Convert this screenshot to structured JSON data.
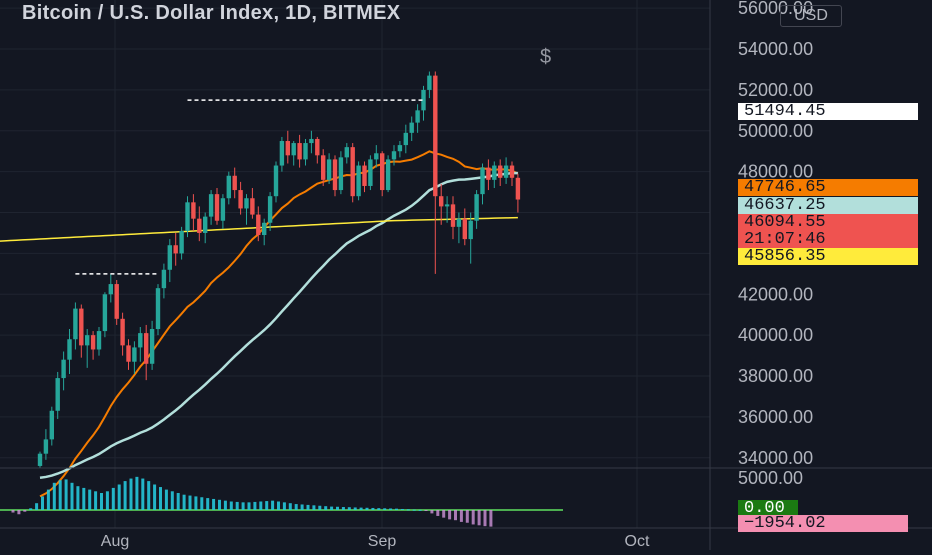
{
  "header": {
    "title": "Bitcoin / U.S. Dollar Index, 1D, BITMEX",
    "currency_button": "USD",
    "dollar_marker": "$"
  },
  "chart_data": {
    "type": "candlestick",
    "title": "Bitcoin / U.S. Dollar Index, 1D, BITMEX",
    "ylim": [
      33500,
      56400
    ],
    "y_ticks": [
      "56000.00",
      "54000.00",
      "52000.00",
      "50000.00",
      "48000.00",
      "46000.00",
      "44000.00",
      "42000.00",
      "40000.00",
      "38000.00",
      "36000.00",
      "34000.00"
    ],
    "x_ticks": [
      "Aug",
      "Sep",
      "Oct"
    ],
    "candles": [
      [
        33600,
        34300,
        33500,
        34200
      ],
      [
        34200,
        35400,
        33900,
        34900
      ],
      [
        34900,
        36500,
        34600,
        36300
      ],
      [
        36300,
        38200,
        35900,
        37900
      ],
      [
        37900,
        39200,
        37300,
        38800
      ],
      [
        38800,
        40300,
        38100,
        39800
      ],
      [
        39800,
        41600,
        39300,
        41300
      ],
      [
        41300,
        41500,
        38900,
        39500
      ],
      [
        39500,
        40300,
        38400,
        40000
      ],
      [
        40000,
        40200,
        38800,
        39300
      ],
      [
        39300,
        40400,
        39000,
        40200
      ],
      [
        40200,
        42100,
        39900,
        42000
      ],
      [
        42000,
        43000,
        41600,
        42500
      ],
      [
        42500,
        42700,
        40500,
        40800
      ],
      [
        40800,
        41100,
        39000,
        39500
      ],
      [
        39500,
        39800,
        38300,
        38700
      ],
      [
        38700,
        39700,
        38100,
        39400
      ],
      [
        39400,
        40400,
        38700,
        40100
      ],
      [
        40100,
        40500,
        37800,
        38600
      ],
      [
        38600,
        40700,
        38300,
        40300
      ],
      [
        40300,
        42500,
        40000,
        42300
      ],
      [
        42300,
        43500,
        41800,
        43200
      ],
      [
        43200,
        44700,
        42600,
        44400
      ],
      [
        44400,
        45000,
        43400,
        44000
      ],
      [
        44000,
        45300,
        43700,
        45100
      ],
      [
        45100,
        46800,
        44800,
        46500
      ],
      [
        46500,
        46900,
        45100,
        45700
      ],
      [
        45700,
        46300,
        44600,
        45000
      ],
      [
        45000,
        46000,
        44500,
        45800
      ],
      [
        45800,
        47100,
        45400,
        46900
      ],
      [
        46900,
        47200,
        45400,
        45600
      ],
      [
        45600,
        46900,
        45200,
        46700
      ],
      [
        46700,
        48000,
        46400,
        47800
      ],
      [
        47800,
        48200,
        46700,
        47100
      ],
      [
        47100,
        47500,
        45900,
        46200
      ],
      [
        46200,
        46900,
        45400,
        46700
      ],
      [
        46700,
        47200,
        45700,
        45900
      ],
      [
        45900,
        46300,
        44600,
        44900
      ],
      [
        44900,
        45700,
        44400,
        45500
      ],
      [
        45500,
        47000,
        45100,
        46800
      ],
      [
        46800,
        48500,
        46500,
        48300
      ],
      [
        48300,
        49700,
        48000,
        49500
      ],
      [
        49500,
        50000,
        48400,
        48800
      ],
      [
        48800,
        49500,
        48300,
        49400
      ],
      [
        49400,
        49800,
        48200,
        48600
      ],
      [
        48600,
        49600,
        48300,
        49400
      ],
      [
        49400,
        50000,
        48900,
        49600
      ],
      [
        49600,
        49700,
        48400,
        48800
      ],
      [
        48800,
        49100,
        47300,
        47600
      ],
      [
        47600,
        48900,
        47400,
        48600
      ],
      [
        48600,
        48800,
        46800,
        47100
      ],
      [
        47100,
        49000,
        46900,
        48700
      ],
      [
        48700,
        49400,
        48400,
        49200
      ],
      [
        49200,
        49400,
        46500,
        46800
      ],
      [
        46800,
        48500,
        46600,
        48300
      ],
      [
        48300,
        48500,
        47000,
        47300
      ],
      [
        47300,
        48800,
        47100,
        48600
      ],
      [
        48600,
        49300,
        48200,
        48900
      ],
      [
        48900,
        49000,
        46800,
        47100
      ],
      [
        47100,
        48800,
        47000,
        48600
      ],
      [
        48600,
        49300,
        48300,
        49000
      ],
      [
        49000,
        49500,
        48700,
        49300
      ],
      [
        49300,
        50300,
        48900,
        49900
      ],
      [
        49900,
        50700,
        49500,
        50400
      ],
      [
        50400,
        51300,
        49900,
        51000
      ],
      [
        51000,
        52200,
        50500,
        52000
      ],
      [
        52000,
        52900,
        51600,
        52700
      ],
      [
        52700,
        52900,
        43000,
        46800
      ],
      [
        46800,
        47400,
        45400,
        46300
      ],
      [
        46300,
        46800,
        45500,
        46400
      ],
      [
        46400,
        46800,
        44700,
        45300
      ],
      [
        45300,
        46000,
        44500,
        45700
      ],
      [
        45700,
        46200,
        44400,
        44700
      ],
      [
        44700,
        46000,
        43500,
        45600
      ],
      [
        45600,
        47100,
        45200,
        46900
      ],
      [
        46900,
        48400,
        46400,
        48200
      ],
      [
        48200,
        48600,
        47100,
        47600
      ],
      [
        47600,
        48500,
        47200,
        48300
      ],
      [
        48300,
        48600,
        47300,
        47700
      ],
      [
        47700,
        48700,
        47400,
        48300
      ],
      [
        48300,
        48500,
        47300,
        47700
      ],
      [
        47700,
        47900,
        46000,
        46637
      ]
    ],
    "annotations": {
      "resistance_lines": [
        {
          "y": 51500,
          "from_index": 25,
          "to_index": 65
        },
        {
          "y": 43000,
          "from_index": 6,
          "to_index": 20
        }
      ]
    },
    "legend": {
      "price": {
        "label": "51494.45",
        "color": "#ffffff"
      },
      "ma_short": {
        "label": "47746.65",
        "color": "#f57c00"
      },
      "close": {
        "label": "46637.25",
        "color": "#b2dfdb"
      },
      "ma_long_1": {
        "label": "46094.55",
        "color": "#ef5350"
      },
      "countdown": {
        "label": "21:07:46",
        "color": "#ef5350"
      },
      "ma_long_2": {
        "label": "45856.35",
        "color": "#ffeb3b"
      }
    },
    "histogram": {
      "ylim_labels": [
        "5000.00"
      ],
      "current": "0.00",
      "value": "−1954.02",
      "bars": [
        -300,
        -500,
        -200,
        200,
        800,
        1600,
        2400,
        3200,
        3500,
        3600,
        3200,
        2800,
        2600,
        2400,
        2200,
        2000,
        2200,
        2600,
        3000,
        3400,
        3700,
        3900,
        3700,
        3400,
        3000,
        2700,
        2400,
        2200,
        2000,
        1800,
        1700,
        1600,
        1500,
        1400,
        1300,
        1200,
        1100,
        1000,
        950,
        900,
        900,
        950,
        1000,
        1050,
        1100,
        1000,
        900,
        800,
        700,
        650,
        600,
        550,
        500,
        450,
        400,
        380,
        350,
        330,
        300,
        280,
        260,
        240,
        220,
        200,
        180,
        160,
        120,
        80,
        40,
        20,
        -100,
        -400,
        -700,
        -900,
        -1100,
        -1200,
        -1400,
        -1500,
        -1700,
        -1800,
        -1900,
        -1954
      ]
    }
  },
  "colors": {
    "up": "#26a69a",
    "down": "#ef5350",
    "ma_orange": "#f57c00",
    "ma_white": "#b2dfdb",
    "ma_yellow": "#ffeb3b",
    "hist_cyan": "#26c6da",
    "hist_purple": "#ce93d8",
    "hist_green": "#4caf50"
  }
}
